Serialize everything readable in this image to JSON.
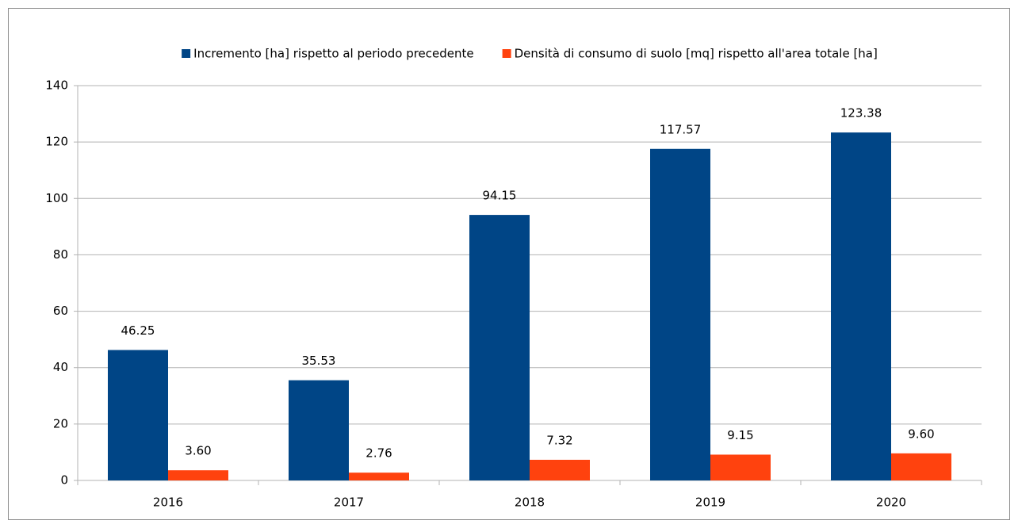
{
  "chart_data": {
    "type": "bar",
    "categories": [
      "2016",
      "2017",
      "2018",
      "2019",
      "2020"
    ],
    "series": [
      {
        "name": "Incremento [ha] rispetto al periodo precedente",
        "color": "#004586",
        "values": [
          46.25,
          35.53,
          94.15,
          117.57,
          123.38
        ],
        "value_labels": [
          "46.25",
          "35.53",
          "94.15",
          "117.57",
          "123.38"
        ]
      },
      {
        "name": "Densità di consumo di suolo [mq] rispetto all'area totale [ha]",
        "color": "#ff420e",
        "values": [
          3.6,
          2.76,
          7.32,
          9.15,
          9.6
        ],
        "value_labels": [
          "3.60",
          "2.76",
          "7.32",
          "9.15",
          "9.60"
        ]
      }
    ],
    "ylim": [
      0,
      140
    ],
    "yticks": [
      0,
      20,
      40,
      60,
      80,
      100,
      120,
      140
    ],
    "grid": true,
    "legend": "top"
  }
}
